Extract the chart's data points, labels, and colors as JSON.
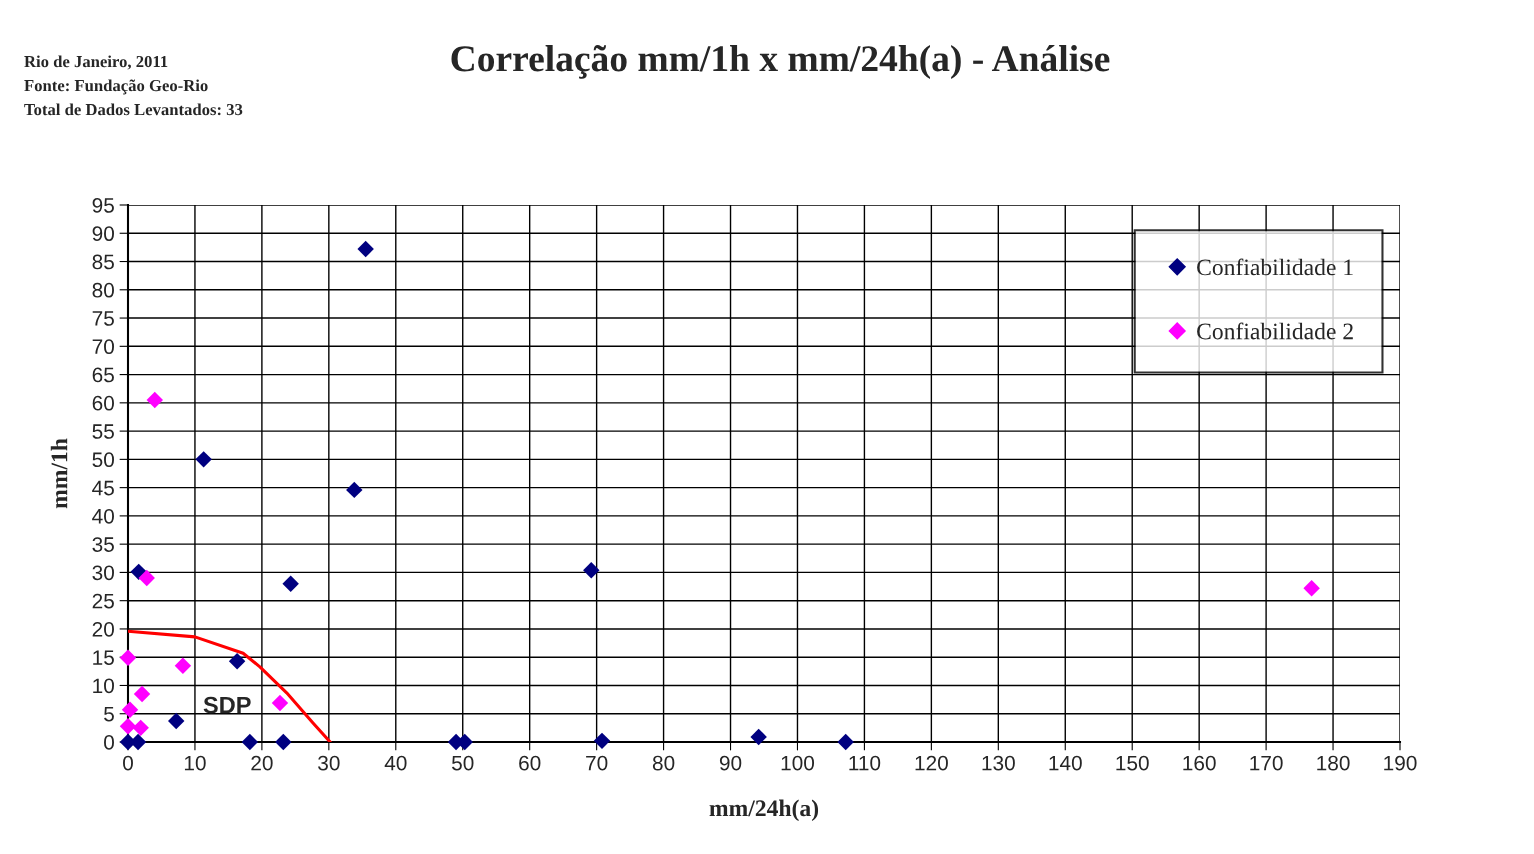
{
  "chart_data": {
    "type": "scatter",
    "title": "Correlação mm/1h x mm/24h(a) - Análise",
    "xlabel": "mm/24h(a)",
    "ylabel": "mm/1h",
    "annotations": [
      "Rio de Janeiro, 2011",
      "Fonte: Fundação Geo-Rio",
      "Total de Dados Levantados: 33",
      "SDP"
    ],
    "series": [
      {
        "name": "Confiabilidade 1",
        "color": "#000080",
        "x": [
          0,
          1.5,
          1.6,
          11.3,
          7.2,
          16.3,
          18.2,
          23.2,
          24.3,
          33.8,
          35.5,
          49,
          50.3,
          69.2,
          70.8,
          94.2,
          107.2
        ],
        "values": [
          0,
          0,
          30.1,
          50,
          3.7,
          14.3,
          0,
          0,
          28,
          44.6,
          87.2,
          0,
          0,
          30.4,
          0.2,
          0.9,
          0
        ]
      },
      {
        "name": "Confiabilidade 2",
        "color": "#ff00ff",
        "x": [
          4,
          2.8,
          0,
          8.2,
          2.1,
          0.3,
          0,
          1.9,
          22.7,
          176.8
        ],
        "values": [
          60.5,
          29,
          14.9,
          13.5,
          8.5,
          5.7,
          2.8,
          2.5,
          6.9,
          27.2
        ]
      },
      {
        "type": "line",
        "color": "#ff0000",
        "marker": "none",
        "x": [
          0,
          10,
          17.2,
          19.7,
          23.7,
          27.6,
          30.2
        ],
        "values": [
          19.6,
          18.6,
          15.7,
          13.3,
          8.7,
          3.4,
          0
        ]
      }
    ],
    "xlim": [
      0,
      190
    ],
    "xticks": [
      0,
      10,
      20,
      30,
      40,
      50,
      60,
      70,
      80,
      90,
      100,
      110,
      120,
      130,
      140,
      150,
      160,
      170,
      180,
      190
    ],
    "ylim": [
      0,
      95
    ],
    "yticks": [
      0,
      5,
      10,
      15,
      20,
      25,
      30,
      35,
      40,
      45,
      50,
      55,
      60,
      65,
      70,
      75,
      80,
      85,
      90,
      95
    ],
    "grid": true,
    "legend": "top right",
    "marker": "diamond"
  }
}
